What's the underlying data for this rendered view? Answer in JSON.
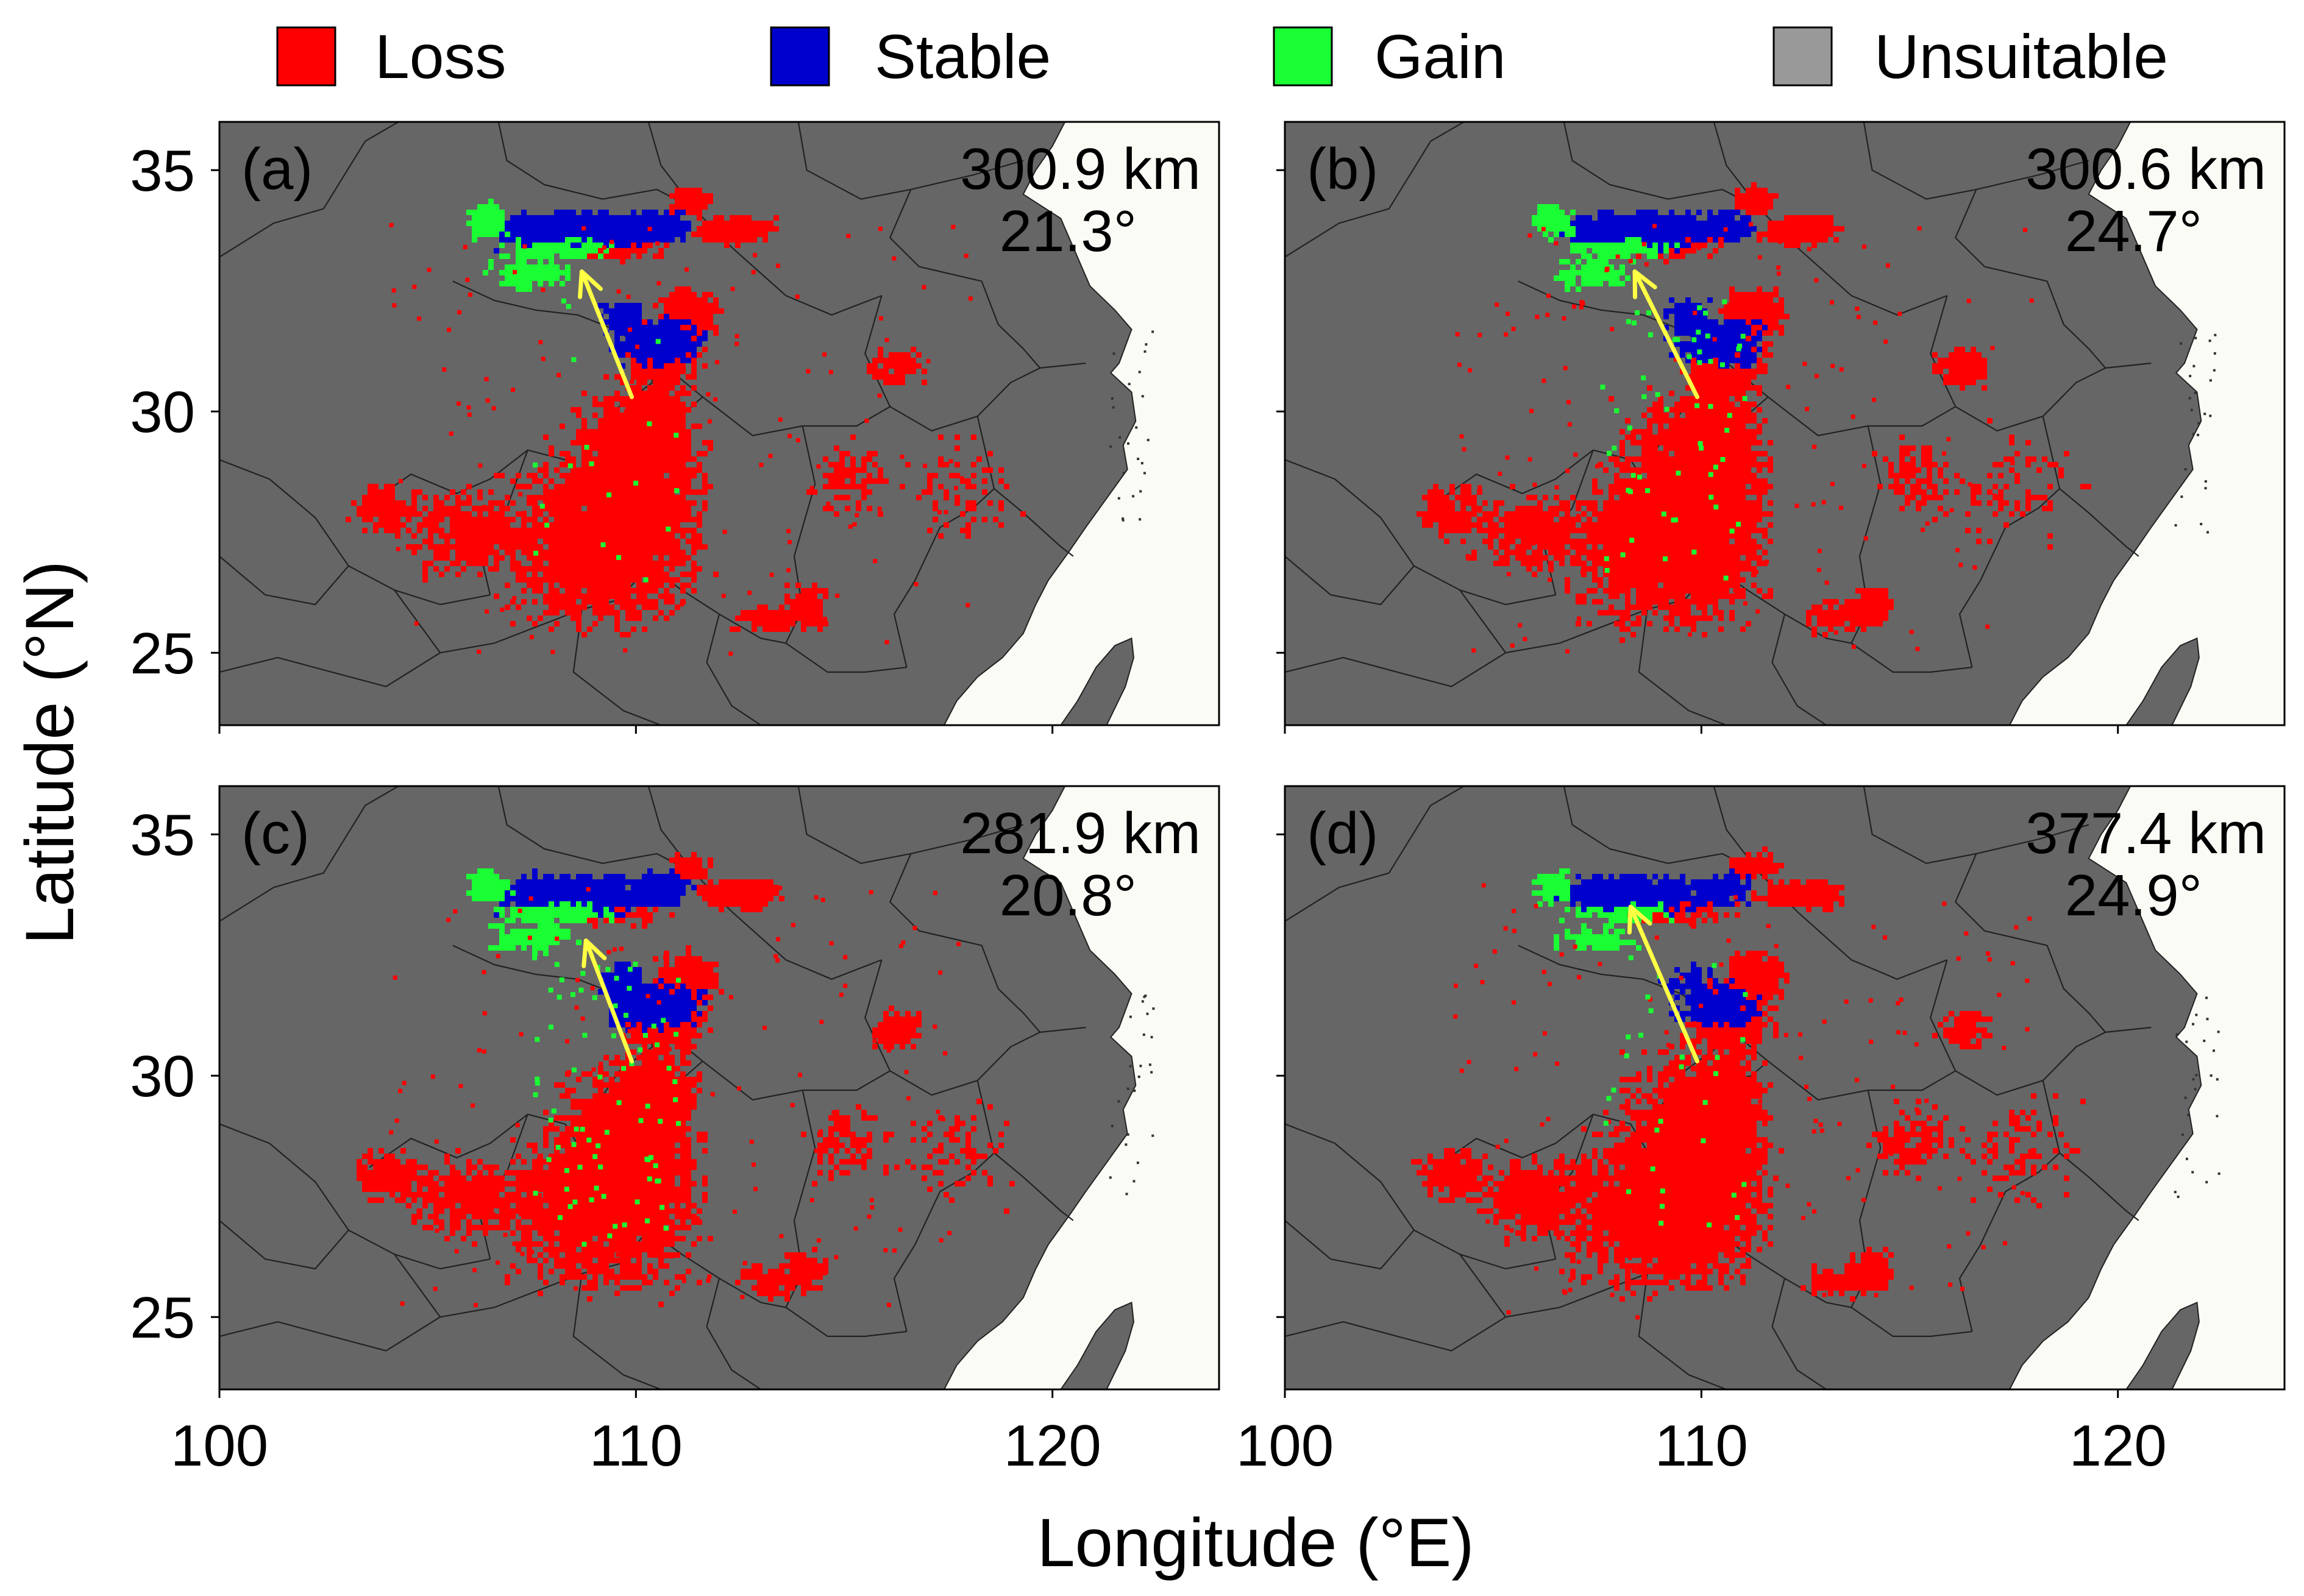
{
  "figure": {
    "legend": {
      "items": [
        {
          "label": "Loss",
          "color": "#ff0000"
        },
        {
          "label": "Stable",
          "color": "#0000cc"
        },
        {
          "label": "Gain",
          "color": "#1aff33"
        },
        {
          "label": "Unsuitable",
          "color": "#999999"
        }
      ]
    },
    "x_axis": {
      "label": "Longitude (°E)",
      "ticks": [
        "100",
        "110",
        "120"
      ],
      "tick_values": [
        100,
        110,
        120
      ]
    },
    "y_axis": {
      "label": "Latitude (°N)",
      "ticks": [
        "35",
        "30",
        "25"
      ],
      "tick_values": [
        35,
        30,
        25
      ]
    },
    "map_extent": {
      "lon": [
        100,
        124
      ],
      "lat": [
        23.5,
        36
      ]
    },
    "colors": {
      "unsuitable_fill": "#666666",
      "sea": "#fbfbf6",
      "loss": "#ff0000",
      "stable": "#0000cc",
      "gain": "#1aff33",
      "arrow": "#ffff44",
      "boundary": "#222222"
    },
    "panels": [
      {
        "letter": "(a)",
        "distance": "300.9 km",
        "angle": "21.3°",
        "arrow": {
          "from": [
            109.9,
            30.3
          ],
          "to": [
            108.7,
            32.9
          ]
        }
      },
      {
        "letter": "(b)",
        "distance": "300.6 km",
        "angle": "24.7°",
        "arrow": {
          "from": [
            109.9,
            30.3
          ],
          "to": [
            108.4,
            32.9
          ]
        }
      },
      {
        "letter": "(c)",
        "distance": "281.9 km",
        "angle": "20.8°",
        "arrow": {
          "from": [
            109.9,
            30.3
          ],
          "to": [
            108.8,
            32.8
          ]
        }
      },
      {
        "letter": "(d)",
        "distance": "377.4 km",
        "angle": "24.9°",
        "arrow": {
          "from": [
            109.9,
            30.3
          ],
          "to": [
            108.3,
            33.5
          ]
        }
      }
    ]
  }
}
